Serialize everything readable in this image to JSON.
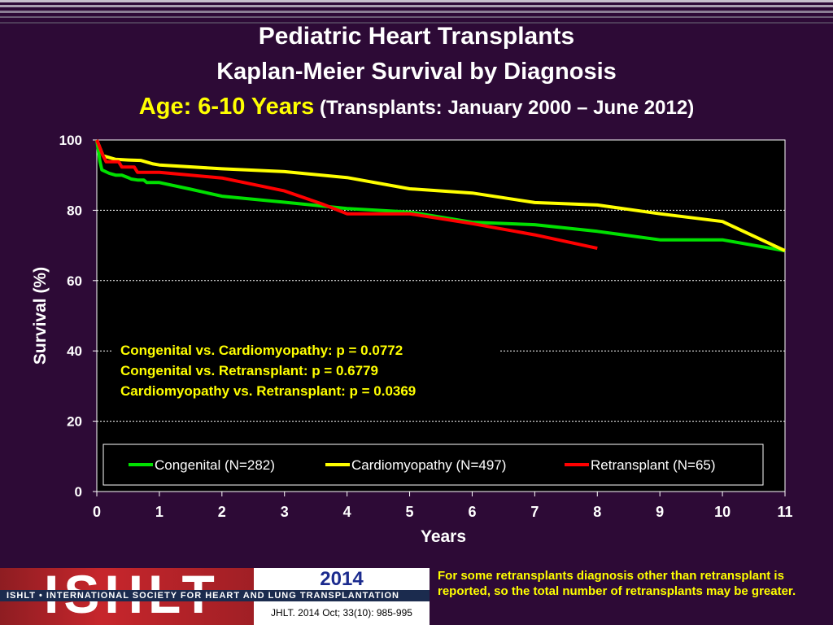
{
  "header": {
    "title": "Pediatric Heart Transplants",
    "subtitle": "Kaplan-Meier Survival by Diagnosis",
    "age_label": "Age: 6-10 Years",
    "period": "(Transplants: January 2000 – June 2012)"
  },
  "chart_data": {
    "type": "line",
    "xlabel": "Years",
    "ylabel": "Survival (%)",
    "xlim": [
      0,
      11
    ],
    "ylim": [
      0,
      100
    ],
    "x_ticks": [
      "0",
      "1",
      "2",
      "3",
      "4",
      "5",
      "6",
      "7",
      "8",
      "9",
      "10",
      "11"
    ],
    "y_ticks": [
      "0",
      "20",
      "40",
      "60",
      "80",
      "100"
    ],
    "grid": "horizontal dashed",
    "legend_position": "bottom",
    "annotations": [
      "Congenital vs. Cardiomyopathy: p = 0.0772",
      "Congenital vs. Retransplant: p = 0.6779",
      "Cardiomyopathy vs. Retransplant: p = 0.0369"
    ],
    "series": [
      {
        "name": "Congenital (N=282)",
        "color": "#00e000",
        "points": [
          [
            0,
            100
          ],
          [
            0.05,
            94
          ],
          [
            0.08,
            91.5
          ],
          [
            0.2,
            90.5
          ],
          [
            0.3,
            90
          ],
          [
            0.4,
            90
          ],
          [
            0.5,
            89.3
          ],
          [
            0.55,
            88.9
          ],
          [
            0.65,
            88.6
          ],
          [
            0.75,
            88.6
          ],
          [
            0.8,
            87.9
          ],
          [
            1,
            87.9
          ],
          [
            1.5,
            86
          ],
          [
            2,
            84
          ],
          [
            3,
            82.3
          ],
          [
            4,
            80.5
          ],
          [
            5,
            79.5
          ],
          [
            6,
            76.6
          ],
          [
            7,
            75.9
          ],
          [
            8,
            74
          ],
          [
            9,
            71.6
          ],
          [
            10,
            71.6
          ],
          [
            11,
            68.5
          ]
        ]
      },
      {
        "name": "Cardiomyopathy (N=497)",
        "color": "#ffff00",
        "points": [
          [
            0,
            100
          ],
          [
            0.1,
            95.5
          ],
          [
            0.3,
            94.5
          ],
          [
            0.5,
            94.3
          ],
          [
            0.7,
            94.2
          ],
          [
            0.9,
            93.2
          ],
          [
            1,
            92.9
          ],
          [
            2,
            91.8
          ],
          [
            3,
            91
          ],
          [
            4,
            89.3
          ],
          [
            5,
            86.1
          ],
          [
            6,
            84.9
          ],
          [
            7,
            82.2
          ],
          [
            8,
            81.5
          ],
          [
            9,
            79
          ],
          [
            10,
            76.8
          ],
          [
            11,
            68.5
          ]
        ]
      },
      {
        "name": "Retransplant (N=65)",
        "color": "#ff0000",
        "points": [
          [
            0,
            100
          ],
          [
            0.1,
            95.5
          ],
          [
            0.15,
            93.8
          ],
          [
            0.35,
            93.8
          ],
          [
            0.4,
            92.3
          ],
          [
            0.6,
            92.3
          ],
          [
            0.65,
            90.8
          ],
          [
            1,
            90.8
          ],
          [
            2,
            89.2
          ],
          [
            3,
            85.5
          ],
          [
            3.6,
            81.8
          ],
          [
            4,
            79
          ],
          [
            5,
            79
          ],
          [
            6,
            76.2
          ],
          [
            7,
            73
          ],
          [
            8,
            69.2
          ]
        ]
      }
    ]
  },
  "footer": {
    "logo_letters": "ISHLT",
    "logo_band": "ISHLT • INTERNATIONAL SOCIETY FOR HEART AND LUNG TRANSPLANTATION",
    "year": "2014",
    "citation": "JHLT. 2014 Oct; 33(10): 985-995",
    "footnote": "For some retransplants diagnosis other than retransplant is reported, so the total number of retransplants may be greater."
  }
}
